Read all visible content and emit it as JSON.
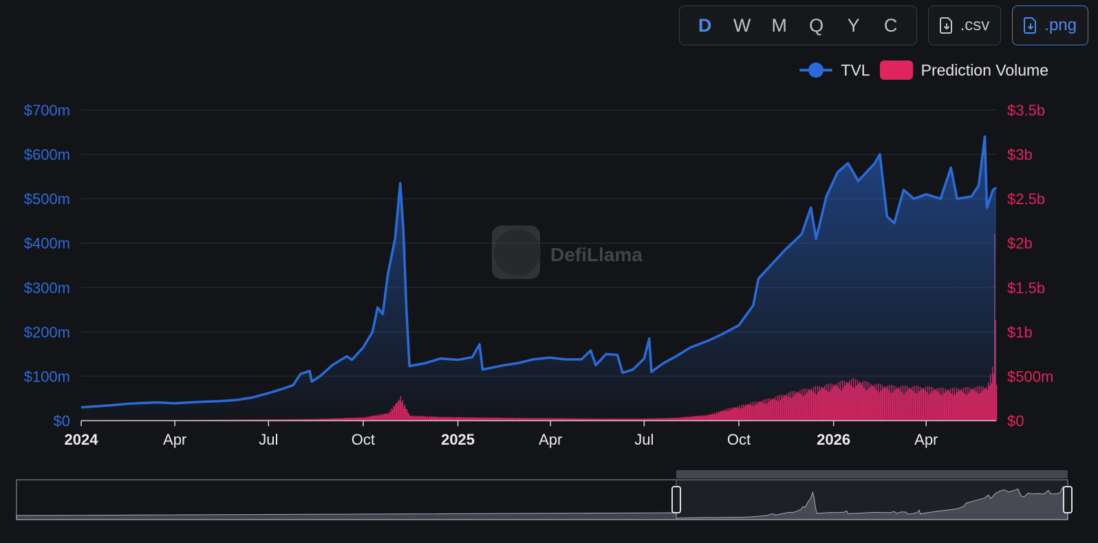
{
  "toolbar": {
    "intervals": [
      "D",
      "W",
      "M",
      "Q",
      "Y",
      "C"
    ],
    "active_interval": "D",
    "csv_label": ".csv",
    "png_label": ".png"
  },
  "watermark": {
    "text": "DefiLlama"
  },
  "colors": {
    "tvl": "#2b6bd9",
    "volume": "#e0245e",
    "grid": "#24262b",
    "background": "#131417"
  },
  "chart_data": {
    "type": "line",
    "legend_position": "top-right",
    "grid": true,
    "x_range": [
      "2024-01-01",
      "2026-06-08"
    ],
    "x_ticks": [
      {
        "date": "2024-01-01",
        "label": "2024",
        "bold": true
      },
      {
        "date": "2024-04-01",
        "label": "Apr"
      },
      {
        "date": "2024-07-01",
        "label": "Jul"
      },
      {
        "date": "2024-10-01",
        "label": "Oct"
      },
      {
        "date": "2025-01-01",
        "label": "2025",
        "bold": true
      },
      {
        "date": "2025-04-01",
        "label": "Apr"
      },
      {
        "date": "2025-07-01",
        "label": "Jul"
      },
      {
        "date": "2025-10-01",
        "label": "Oct"
      },
      {
        "date": "2026-01-01",
        "label": "2026",
        "bold": true
      },
      {
        "date": "2026-04-01",
        "label": "Apr"
      }
    ],
    "y_left": {
      "min": 0,
      "max": 700000000,
      "ticks": [
        0,
        100000000,
        200000000,
        300000000,
        400000000,
        500000000,
        600000000,
        700000000
      ],
      "tick_labels": [
        "$0",
        "$100m",
        "$200m",
        "$300m",
        "$400m",
        "$500m",
        "$600m",
        "$700m"
      ]
    },
    "y_right": {
      "min": 0,
      "max": 3500000000,
      "ticks": [
        0,
        500000000,
        1000000000,
        1500000000,
        2000000000,
        2500000000,
        3000000000,
        3500000000
      ],
      "tick_labels": [
        "$0",
        "$500m",
        "$1b",
        "$1.5b",
        "$2b",
        "$2.5b",
        "$3b",
        "$3.5b"
      ]
    },
    "series": [
      {
        "name": "TVL",
        "axis": "left",
        "style": "line-area",
        "points": [
          [
            "2024-01-01",
            30000000
          ],
          [
            "2024-01-15",
            32000000
          ],
          [
            "2024-02-01",
            35000000
          ],
          [
            "2024-02-15",
            38000000
          ],
          [
            "2024-03-01",
            40000000
          ],
          [
            "2024-03-15",
            41000000
          ],
          [
            "2024-04-01",
            39000000
          ],
          [
            "2024-04-15",
            41000000
          ],
          [
            "2024-05-01",
            43000000
          ],
          [
            "2024-05-15",
            44000000
          ],
          [
            "2024-06-01",
            47000000
          ],
          [
            "2024-06-15",
            52000000
          ],
          [
            "2024-07-01",
            62000000
          ],
          [
            "2024-07-15",
            72000000
          ],
          [
            "2024-07-25",
            80000000
          ],
          [
            "2024-08-01",
            105000000
          ],
          [
            "2024-08-10",
            112000000
          ],
          [
            "2024-08-12",
            88000000
          ],
          [
            "2024-08-20",
            100000000
          ],
          [
            "2024-09-01",
            125000000
          ],
          [
            "2024-09-15",
            145000000
          ],
          [
            "2024-09-20",
            137000000
          ],
          [
            "2024-10-01",
            165000000
          ],
          [
            "2024-10-10",
            200000000
          ],
          [
            "2024-10-15",
            255000000
          ],
          [
            "2024-10-20",
            240000000
          ],
          [
            "2024-10-25",
            330000000
          ],
          [
            "2024-11-01",
            410000000
          ],
          [
            "2024-11-06",
            535000000
          ],
          [
            "2024-11-09",
            430000000
          ],
          [
            "2024-11-12",
            250000000
          ],
          [
            "2024-11-15",
            123000000
          ],
          [
            "2024-12-01",
            130000000
          ],
          [
            "2024-12-15",
            140000000
          ],
          [
            "2025-01-01",
            137000000
          ],
          [
            "2025-01-15",
            143000000
          ],
          [
            "2025-01-22",
            172000000
          ],
          [
            "2025-01-25",
            115000000
          ],
          [
            "2025-02-15",
            125000000
          ],
          [
            "2025-03-01",
            130000000
          ],
          [
            "2025-03-15",
            138000000
          ],
          [
            "2025-04-01",
            142000000
          ],
          [
            "2025-04-15",
            138000000
          ],
          [
            "2025-05-01",
            138000000
          ],
          [
            "2025-05-10",
            158000000
          ],
          [
            "2025-05-15",
            125000000
          ],
          [
            "2025-05-25",
            150000000
          ],
          [
            "2025-06-05",
            148000000
          ],
          [
            "2025-06-10",
            108000000
          ],
          [
            "2025-06-20",
            115000000
          ],
          [
            "2025-07-01",
            140000000
          ],
          [
            "2025-07-06",
            185000000
          ],
          [
            "2025-07-08",
            110000000
          ],
          [
            "2025-07-20",
            130000000
          ],
          [
            "2025-08-01",
            145000000
          ],
          [
            "2025-08-15",
            165000000
          ],
          [
            "2025-09-01",
            180000000
          ],
          [
            "2025-09-15",
            195000000
          ],
          [
            "2025-10-01",
            215000000
          ],
          [
            "2025-10-15",
            260000000
          ],
          [
            "2025-10-20",
            320000000
          ],
          [
            "2025-11-01",
            350000000
          ],
          [
            "2025-11-15",
            385000000
          ],
          [
            "2025-12-01",
            420000000
          ],
          [
            "2025-12-10",
            480000000
          ],
          [
            "2025-12-15",
            410000000
          ],
          [
            "2025-12-25",
            505000000
          ],
          [
            "2026-01-05",
            560000000
          ],
          [
            "2026-01-15",
            580000000
          ],
          [
            "2026-01-25",
            540000000
          ],
          [
            "2026-02-10",
            580000000
          ],
          [
            "2026-02-15",
            600000000
          ],
          [
            "2026-02-22",
            460000000
          ],
          [
            "2026-03-01",
            445000000
          ],
          [
            "2026-03-10",
            520000000
          ],
          [
            "2026-03-20",
            500000000
          ],
          [
            "2026-04-01",
            510000000
          ],
          [
            "2026-04-15",
            500000000
          ],
          [
            "2026-04-25",
            570000000
          ],
          [
            "2026-05-01",
            500000000
          ],
          [
            "2026-05-15",
            505000000
          ],
          [
            "2026-05-22",
            530000000
          ],
          [
            "2026-05-28",
            640000000
          ],
          [
            "2026-05-30",
            480000000
          ],
          [
            "2026-06-05",
            520000000
          ],
          [
            "2026-06-08",
            525000000
          ]
        ]
      },
      {
        "name": "Prediction Volume",
        "axis": "right",
        "style": "bar",
        "points": [
          [
            "2024-01-01",
            5000000
          ],
          [
            "2024-04-01",
            8000000
          ],
          [
            "2024-07-01",
            15000000
          ],
          [
            "2024-08-15",
            20000000
          ],
          [
            "2024-10-01",
            40000000
          ],
          [
            "2024-10-25",
            90000000
          ],
          [
            "2024-11-06",
            280000000
          ],
          [
            "2024-11-15",
            60000000
          ],
          [
            "2024-12-15",
            45000000
          ],
          [
            "2025-01-15",
            40000000
          ],
          [
            "2025-02-15",
            35000000
          ],
          [
            "2025-04-01",
            30000000
          ],
          [
            "2025-05-15",
            25000000
          ],
          [
            "2025-07-01",
            25000000
          ],
          [
            "2025-08-01",
            35000000
          ],
          [
            "2025-09-01",
            70000000
          ],
          [
            "2025-09-20",
            140000000
          ],
          [
            "2025-10-10",
            200000000
          ],
          [
            "2025-11-01",
            260000000
          ],
          [
            "2025-11-20",
            330000000
          ],
          [
            "2025-12-10",
            380000000
          ],
          [
            "2026-01-01",
            430000000
          ],
          [
            "2026-01-20",
            480000000
          ],
          [
            "2026-02-10",
            420000000
          ],
          [
            "2026-03-01",
            400000000
          ],
          [
            "2026-04-01",
            390000000
          ],
          [
            "2026-04-20",
            370000000
          ],
          [
            "2026-05-10",
            380000000
          ],
          [
            "2026-05-30",
            400000000
          ],
          [
            "2026-06-05",
            650000000
          ],
          [
            "2026-06-06",
            2150000000
          ],
          [
            "2026-06-07",
            1300000000
          ],
          [
            "2026-06-08",
            420000000
          ]
        ]
      }
    ]
  }
}
